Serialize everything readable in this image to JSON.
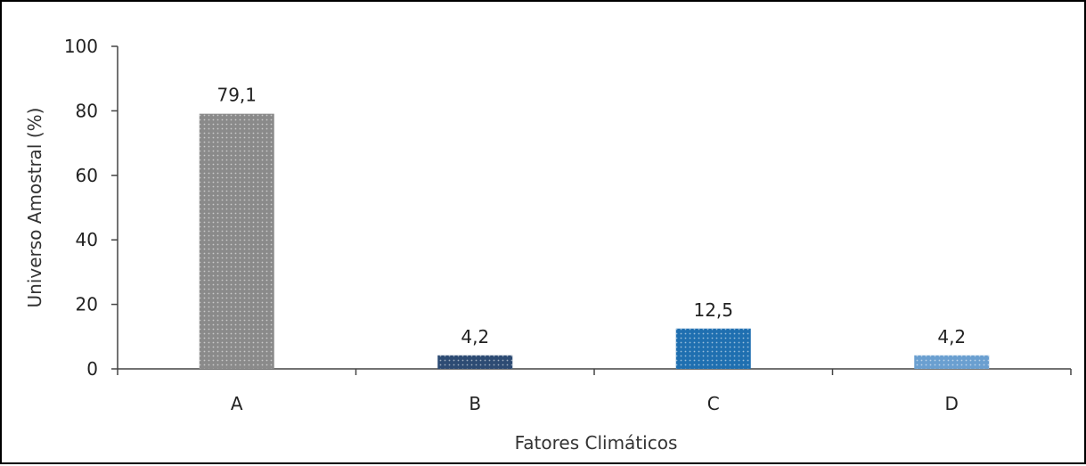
{
  "chart_data": {
    "type": "bar",
    "categories": [
      "A",
      "B",
      "C",
      "D"
    ],
    "values": [
      79.1,
      4.2,
      12.5,
      4.2
    ],
    "value_labels": [
      "79,1",
      "4,2",
      "12,5",
      "4,2"
    ],
    "bar_colors": [
      "#8a8a8a",
      "#2d4b73",
      "#1f6fb0",
      "#6a9fd0"
    ],
    "title": "",
    "xlabel": "Fatores Climáticos",
    "ylabel": "Universo Amostral (%)",
    "ylim": [
      0,
      100
    ],
    "yticks": [
      0,
      20,
      40,
      60,
      80,
      100
    ],
    "ytick_labels": [
      "0",
      "20",
      "40",
      "60",
      "80",
      "100"
    ],
    "grid": false,
    "legend": false,
    "bar_fill_pattern": "dotted"
  }
}
